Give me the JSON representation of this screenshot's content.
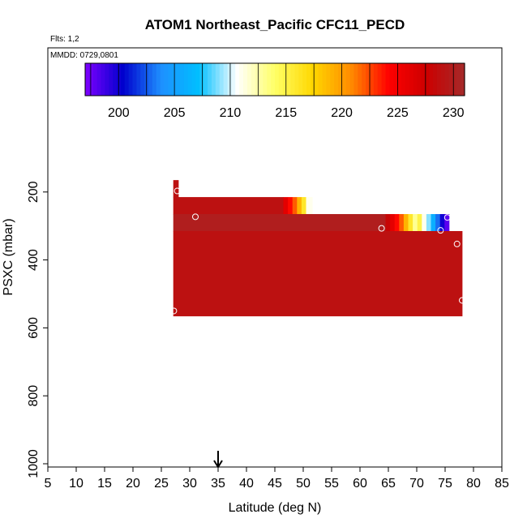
{
  "chart_data": {
    "type": "heatmap",
    "title": "ATOM1 Northeast_Pacific CFC11_PECD",
    "flights_label": "Flts: 1,2",
    "mmdd_label": "MMDD: 0729,0801",
    "xlabel": "Latitude (deg N)",
    "ylabel": "PSXC (mbar)",
    "xlim": [
      5,
      85
    ],
    "ylim": [
      1000,
      0
    ],
    "x_ticks": [
      5,
      10,
      15,
      20,
      25,
      30,
      35,
      40,
      45,
      50,
      55,
      60,
      65,
      70,
      75,
      80,
      85
    ],
    "y_ticks": [
      200,
      400,
      600,
      800,
      1000
    ],
    "colorbar": {
      "range": [
        197,
        231
      ],
      "ticks": [
        200,
        205,
        210,
        215,
        220,
        225,
        230
      ],
      "colors": [
        "#7f00ff",
        "#0000cd",
        "#1e90ff",
        "#00bfff",
        "#ffffff",
        "#ffff66",
        "#ffd700",
        "#ff8c00",
        "#ff0000",
        "#cc0000",
        "#a52a2a"
      ]
    },
    "arrow_latitude": 35,
    "layers": [
      {
        "p_top": 165,
        "p_bot": 215,
        "segments": [
          {
            "lat_start": 27.1,
            "lat_end": 28.0,
            "value": 229
          }
        ]
      },
      {
        "p_top": 215,
        "p_bot": 265,
        "segments": [
          {
            "lat_start": 27.1,
            "lat_end": 46.5,
            "value": 229
          },
          {
            "lat_start": 46.5,
            "lat_end": 47.3,
            "value": 226
          },
          {
            "lat_start": 47.3,
            "lat_end": 48.1,
            "value": 224
          },
          {
            "lat_start": 48.1,
            "lat_end": 48.9,
            "value": 222
          },
          {
            "lat_start": 48.9,
            "lat_end": 49.7,
            "value": 219
          },
          {
            "lat_start": 49.7,
            "lat_end": 50.5,
            "value": 216
          },
          {
            "lat_start": 50.5,
            "lat_end": 51.6,
            "value": 211
          }
        ]
      },
      {
        "p_top": 265,
        "p_bot": 315,
        "segments": [
          {
            "lat_start": 27.1,
            "lat_end": 64.5,
            "value": 230
          },
          {
            "lat_start": 64.5,
            "lat_end": 65.3,
            "value": 228
          },
          {
            "lat_start": 65.3,
            "lat_end": 66.1,
            "value": 226
          },
          {
            "lat_start": 66.1,
            "lat_end": 66.9,
            "value": 224
          },
          {
            "lat_start": 66.9,
            "lat_end": 67.7,
            "value": 222
          },
          {
            "lat_start": 67.7,
            "lat_end": 68.5,
            "value": 219
          },
          {
            "lat_start": 68.5,
            "lat_end": 69.3,
            "value": 216
          },
          {
            "lat_start": 69.3,
            "lat_end": 70.1,
            "value": 213
          },
          {
            "lat_start": 70.1,
            "lat_end": 70.9,
            "value": 215
          },
          {
            "lat_start": 70.9,
            "lat_end": 71.7,
            "value": 211
          },
          {
            "lat_start": 71.7,
            "lat_end": 72.5,
            "value": 209
          },
          {
            "lat_start": 72.5,
            "lat_end": 73.3,
            "value": 206
          },
          {
            "lat_start": 73.3,
            "lat_end": 74.1,
            "value": 203
          },
          {
            "lat_start": 74.1,
            "lat_end": 74.9,
            "value": 200
          },
          {
            "lat_start": 74.9,
            "lat_end": 75.7,
            "value": 198
          }
        ]
      },
      {
        "p_top": 315,
        "p_bot": 565,
        "segments": [
          {
            "lat_start": 27.1,
            "lat_end": 78.0,
            "value": 229
          }
        ]
      }
    ],
    "points": [
      {
        "lat": 27.8,
        "p": 197
      },
      {
        "lat": 31.0,
        "p": 273
      },
      {
        "lat": 63.8,
        "p": 307
      },
      {
        "lat": 74.2,
        "p": 313
      },
      {
        "lat": 75.4,
        "p": 275
      },
      {
        "lat": 77.1,
        "p": 353
      },
      {
        "lat": 27.2,
        "p": 550
      },
      {
        "lat": 78.0,
        "p": 519
      }
    ]
  }
}
